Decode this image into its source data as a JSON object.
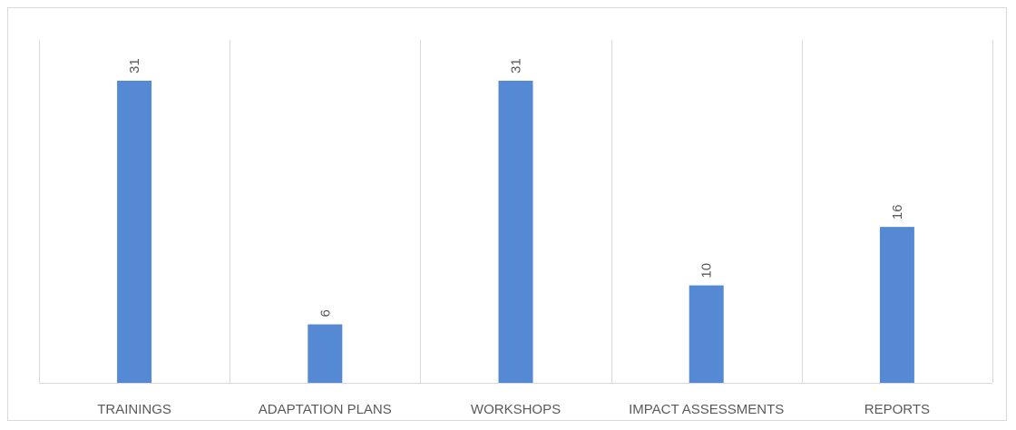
{
  "chart_data": {
    "type": "bar",
    "categories": [
      "TRAININGS",
      "ADAPTATION PLANS",
      "WORKSHOPS",
      "IMPACT ASSESSMENTS",
      "REPORTS"
    ],
    "values": [
      31,
      6,
      31,
      10,
      16
    ],
    "title": "",
    "xlabel": "",
    "ylabel": "",
    "ylim": [
      0,
      35
    ],
    "grid": "vertical category separators",
    "legend": "none",
    "data_labels": "rotated, above bars",
    "colors": {
      "bar": "#5589d3",
      "grid": "#d9d9d9",
      "text": "#595959"
    }
  }
}
